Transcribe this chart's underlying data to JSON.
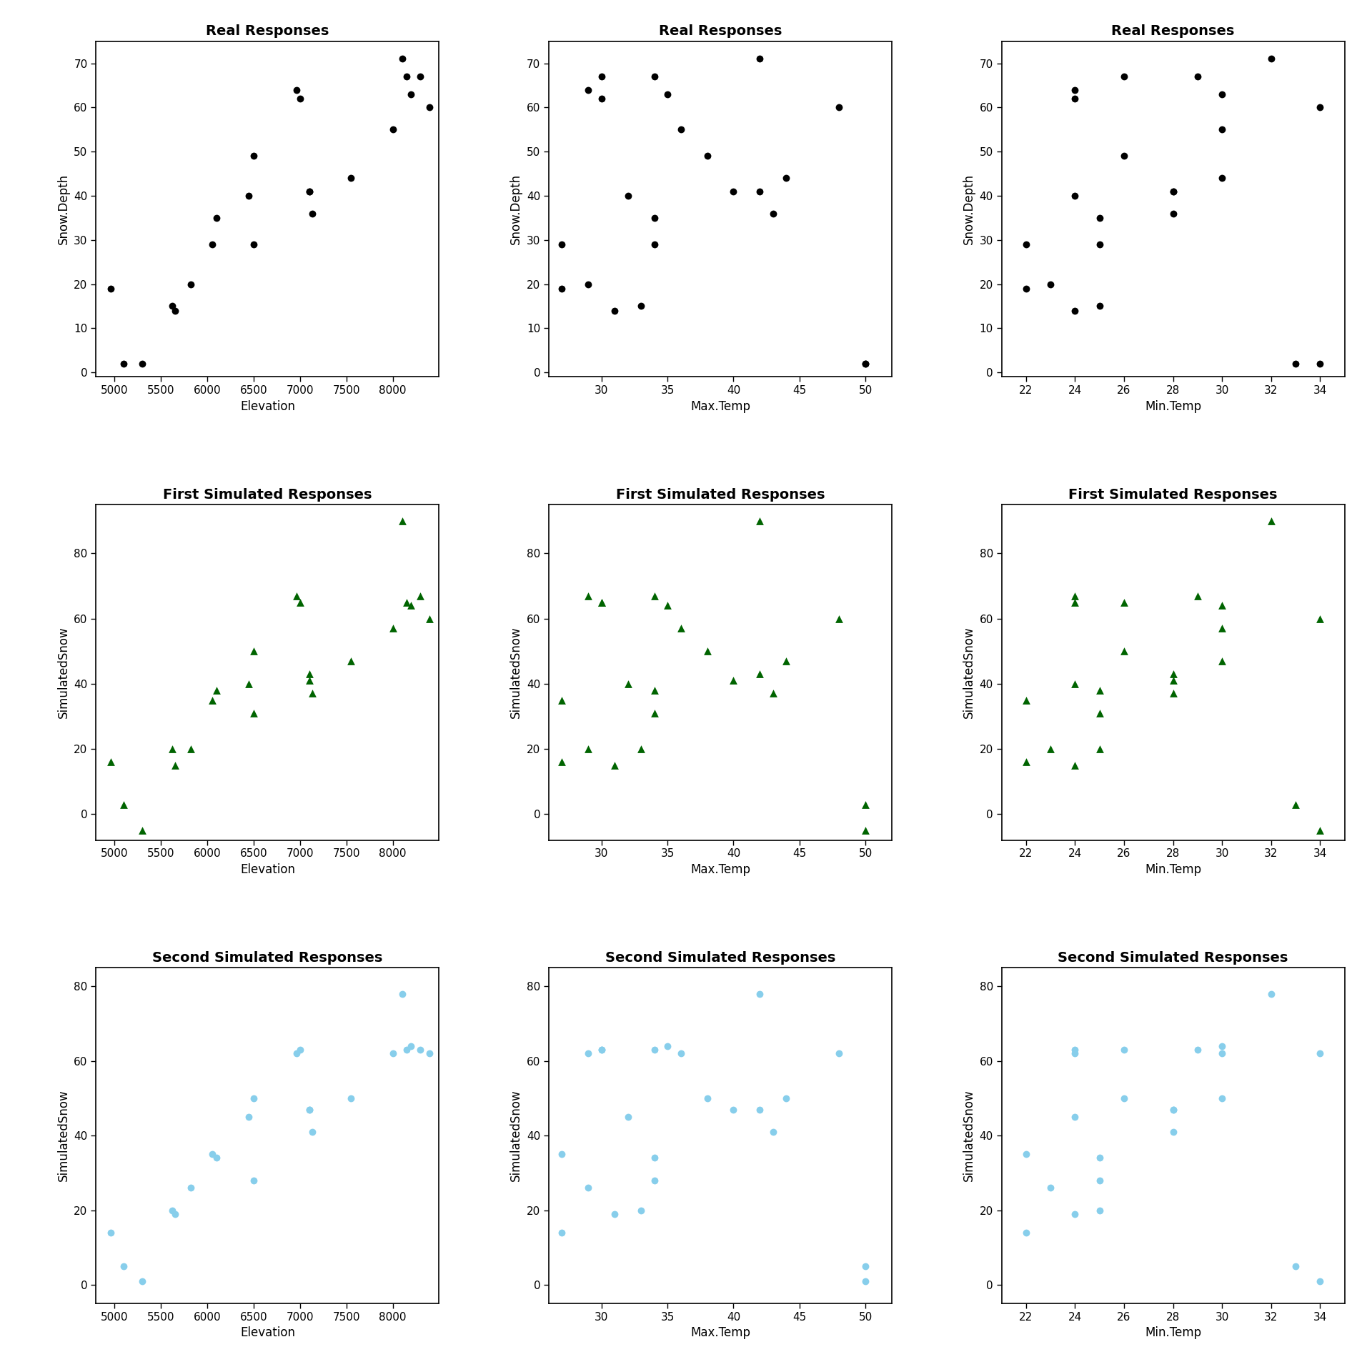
{
  "elevation": [
    4960,
    5100,
    5300,
    5620,
    5650,
    5820,
    6050,
    6100,
    6450,
    6500,
    6500,
    6960,
    7000,
    7100,
    7100,
    7130,
    7550,
    8000,
    8100,
    8150,
    8200,
    8300,
    8400
  ],
  "snow_depth": [
    19,
    2,
    2,
    15,
    14,
    20,
    29,
    35,
    40,
    49,
    29,
    64,
    62,
    41,
    41,
    36,
    44,
    55,
    71,
    67,
    63,
    67,
    60
  ],
  "max_temp": [
    27,
    50,
    50,
    33,
    31,
    29,
    27,
    34,
    32,
    38,
    34,
    29,
    30,
    40,
    42,
    43,
    44,
    36,
    42,
    30,
    35,
    34,
    48
  ],
  "min_temp": [
    22,
    33,
    34,
    25,
    24,
    23,
    22,
    25,
    24,
    26,
    25,
    24,
    24,
    28,
    28,
    28,
    30,
    30,
    32,
    26,
    30,
    29,
    34
  ],
  "sim1_snow": [
    16,
    3,
    -5,
    20,
    15,
    20,
    35,
    38,
    40,
    50,
    31,
    67,
    65,
    41,
    43,
    37,
    47,
    57,
    90,
    65,
    64,
    67,
    60
  ],
  "sim2_snow": [
    14,
    5,
    1,
    20,
    19,
    26,
    35,
    34,
    45,
    50,
    28,
    62,
    63,
    47,
    47,
    41,
    50,
    62,
    78,
    63,
    64,
    63,
    62
  ],
  "real_color": "#000000",
  "sim1_color": "#006400",
  "sim2_color": "#87CEEB",
  "background": "#ffffff",
  "title_fontsize": 14,
  "label_fontsize": 12,
  "tick_fontsize": 11,
  "rows": [
    "Real Responses",
    "First Simulated Responses",
    "Second Simulated Responses"
  ],
  "cols": [
    "Elevation",
    "Max.Temp",
    "Min.Temp"
  ],
  "ylabels": [
    "Snow.Depth",
    "SimulatedSnow",
    "SimulatedSnow"
  ],
  "elev_xlim": [
    4800,
    8500
  ],
  "elev_xticks": [
    5000,
    5500,
    6000,
    6500,
    7000,
    7500,
    8000
  ],
  "maxtemp_xlim": [
    26,
    52
  ],
  "maxtemp_xticks": [
    30,
    35,
    40,
    45,
    50
  ],
  "mintemp_xlim": [
    21,
    35
  ],
  "mintemp_xticks": [
    22,
    24,
    26,
    28,
    30,
    32,
    34
  ],
  "ylim_real": [
    -1,
    75
  ],
  "yticks_real": [
    0,
    10,
    20,
    30,
    40,
    50,
    60,
    70
  ],
  "ylim_sim1": [
    -8,
    95
  ],
  "yticks_sim1": [
    0,
    20,
    40,
    60,
    80
  ],
  "ylim_sim2": [
    -5,
    85
  ],
  "yticks_sim2": [
    0,
    20,
    40,
    60,
    80
  ],
  "marker_size": 50,
  "marker_size_tri": 60
}
